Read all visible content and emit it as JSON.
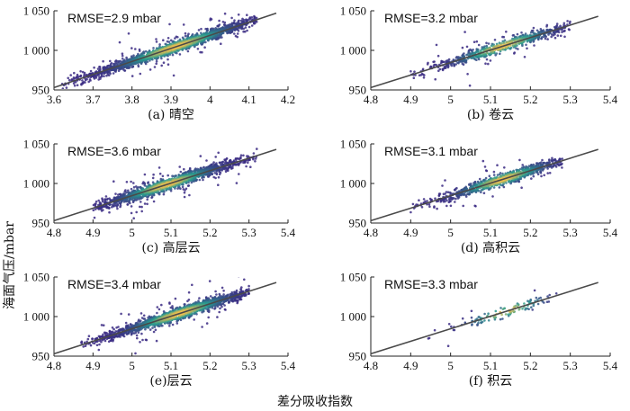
{
  "figure": {
    "ylabel": "海面气压/mbar",
    "xlabel": "差分吸收指数"
  },
  "colors": {
    "fit_line": "#4a4a4a",
    "axis": "#222222",
    "density_low": "#3b2a84",
    "density_mid": "#2a9d8f",
    "density_high": "#f2c14e"
  },
  "chart_data": [
    {
      "type": "scatter",
      "caption": "(a) 晴空",
      "rmse": "RMSE=2.9 mbar",
      "xlim": [
        3.6,
        4.2
      ],
      "ylim": [
        950,
        1050
      ],
      "xticks": [
        3.6,
        3.7,
        3.8,
        3.9,
        4.0,
        4.1,
        4.2
      ],
      "xtick_labels": [
        "3.6",
        "3.7",
        "3.8",
        "3.9",
        "4",
        "4.1",
        "4.2"
      ],
      "yticks": [
        950,
        1000,
        1050
      ],
      "ytick_labels": [
        "950",
        "1 000",
        "1 050"
      ],
      "fit_line": [
        [
          3.6,
          953
        ],
        [
          4.17,
          1047
        ]
      ],
      "density_centroid": [
        3.91,
        1005
      ],
      "x_range_of_points": [
        3.62,
        4.12
      ]
    },
    {
      "type": "scatter",
      "caption": "(b) 卷云",
      "rmse": "RMSE=3.2 mbar",
      "xlim": [
        4.8,
        5.4
      ],
      "ylim": [
        950,
        1050
      ],
      "xticks": [
        4.8,
        4.9,
        5.0,
        5.1,
        5.2,
        5.3,
        5.4
      ],
      "xtick_labels": [
        "4.8",
        "4.9",
        "5",
        "5.1",
        "5.2",
        "5.3",
        "5.4"
      ],
      "yticks": [
        950,
        1000,
        1050
      ],
      "ytick_labels": [
        "950",
        "1 000",
        "1 050"
      ],
      "fit_line": [
        [
          4.8,
          953
        ],
        [
          5.37,
          1043
        ]
      ],
      "density_centroid": [
        5.13,
        1008
      ],
      "x_range_of_points": [
        4.9,
        5.3
      ]
    },
    {
      "type": "scatter",
      "caption": "(c) 高层云",
      "rmse": "RMSE=3.6 mbar",
      "xlim": [
        4.8,
        5.4
      ],
      "ylim": [
        950,
        1050
      ],
      "xticks": [
        4.8,
        4.9,
        5.0,
        5.1,
        5.2,
        5.3,
        5.4
      ],
      "xtick_labels": [
        "4.8",
        "4.9",
        "5",
        "5.1",
        "5.2",
        "5.3",
        "5.4"
      ],
      "yticks": [
        950,
        1000,
        1050
      ],
      "ytick_labels": [
        "950",
        "1 000",
        "1 050"
      ],
      "fit_line": [
        [
          4.8,
          953
        ],
        [
          5.37,
          1043
        ]
      ],
      "density_centroid": [
        5.09,
        1006
      ],
      "x_range_of_points": [
        4.9,
        5.32
      ]
    },
    {
      "type": "scatter",
      "caption": "(d) 高积云",
      "rmse": "RMSE=3.1 mbar",
      "xlim": [
        4.8,
        5.4
      ],
      "ylim": [
        950,
        1050
      ],
      "xticks": [
        4.8,
        4.9,
        5.0,
        5.1,
        5.2,
        5.3,
        5.4
      ],
      "xtick_labels": [
        "4.8",
        "4.9",
        "5",
        "5.1",
        "5.2",
        "5.3",
        "5.4"
      ],
      "yticks": [
        950,
        1000,
        1050
      ],
      "ytick_labels": [
        "950",
        "1 000",
        "1 050"
      ],
      "fit_line": [
        [
          4.8,
          953
        ],
        [
          5.37,
          1043
        ]
      ],
      "density_centroid": [
        5.13,
        1010
      ],
      "x_range_of_points": [
        4.9,
        5.28
      ]
    },
    {
      "type": "scatter",
      "caption": "(e)层云",
      "rmse": "RMSE=3.4 mbar",
      "xlim": [
        4.8,
        5.4
      ],
      "ylim": [
        950,
        1050
      ],
      "xticks": [
        4.8,
        4.9,
        5.0,
        5.1,
        5.2,
        5.3,
        5.4
      ],
      "xtick_labels": [
        "4.8",
        "4.9",
        "5",
        "5.1",
        "5.2",
        "5.3",
        "5.4"
      ],
      "yticks": [
        950,
        1000,
        1050
      ],
      "ytick_labels": [
        "950",
        "1 000",
        "1 050"
      ],
      "fit_line": [
        [
          4.8,
          953
        ],
        [
          5.37,
          1043
        ]
      ],
      "density_centroid": [
        5.12,
        1010
      ],
      "x_range_of_points": [
        4.87,
        5.3
      ]
    },
    {
      "type": "scatter",
      "caption": "(f) 积云",
      "rmse": "RMSE=3.3 mbar",
      "xlim": [
        4.8,
        5.4
      ],
      "ylim": [
        950,
        1050
      ],
      "xticks": [
        4.8,
        4.9,
        5.0,
        5.1,
        5.2,
        5.3,
        5.4
      ],
      "xtick_labels": [
        "4.8",
        "4.9",
        "5",
        "5.1",
        "5.2",
        "5.3",
        "5.4"
      ],
      "yticks": [
        950,
        1000,
        1050
      ],
      "ytick_labels": [
        "950",
        "1 000",
        "1 050"
      ],
      "fit_line": [
        [
          4.8,
          953
        ],
        [
          5.37,
          1043
        ]
      ],
      "density_centroid": [
        5.14,
        1012
      ],
      "x_range_of_points": [
        4.92,
        5.27
      ]
    }
  ]
}
